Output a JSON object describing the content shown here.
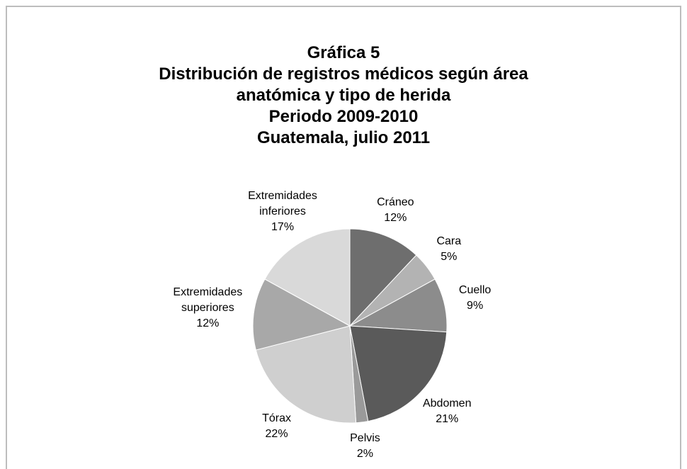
{
  "chart_data": {
    "type": "pie",
    "title": [
      "Gráfica 5",
      "Distribución de registros médicos según área",
      "anatómica y tipo de herida",
      "Periodo 2009-2010",
      "Guatemala, julio 2011"
    ],
    "categories": [
      "Cráneo",
      "Cara",
      "Cuello",
      "Abdomen",
      "Pelvis",
      "Tórax",
      "Extremidades superiores",
      "Extremidades inferiores"
    ],
    "values": [
      12,
      5,
      9,
      21,
      2,
      22,
      12,
      17
    ],
    "value_labels": [
      "12%",
      "5%",
      "9%",
      "21%",
      "2%",
      "22%",
      "12%",
      "17%"
    ],
    "colors": [
      "#6e6e6e",
      "#b3b3b3",
      "#8c8c8c",
      "#5a5a5a",
      "#9a9a9a",
      "#cfcfcf",
      "#a8a8a8",
      "#d9d9d9"
    ]
  }
}
